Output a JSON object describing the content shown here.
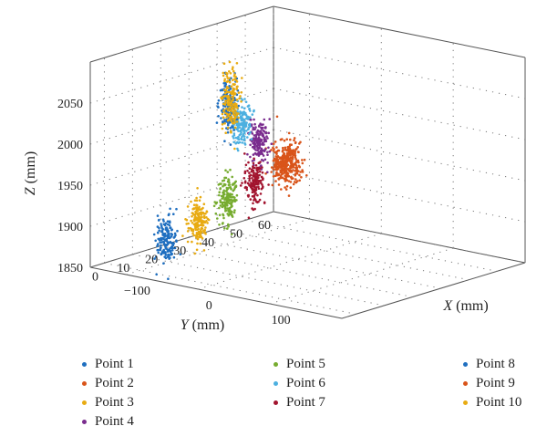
{
  "chart_data": {
    "type": "scatter",
    "projection": "3d",
    "axes": {
      "x": {
        "label_var": "X",
        "label_unit": " (mm)",
        "ticks": [
          -100,
          0,
          100
        ],
        "tick_labels": [
          "−100",
          "0",
          "100"
        ],
        "range": [
          -150,
          200
        ]
      },
      "y": {
        "label_var": "Y",
        "label_unit": " (mm)",
        "ticks": [
          0,
          10,
          20,
          30,
          40,
          50,
          60
        ],
        "tick_labels": [
          "0",
          "10",
          "20",
          "30",
          "40",
          "50",
          "60"
        ],
        "range": [
          -5,
          60
        ]
      },
      "z": {
        "label_var": "Z",
        "label_unit": " (mm)",
        "ticks": [
          1850,
          1900,
          1950,
          2000,
          2050
        ],
        "tick_labels": [
          "1850",
          "1900",
          "1950",
          "2000",
          "2050"
        ],
        "range": [
          1850,
          2100
        ]
      }
    },
    "grid": true,
    "legend_position": "bottom",
    "series": [
      {
        "name": "Point 1",
        "color": "#1f6fc0",
        "center": {
          "x": -60,
          "y": -1,
          "z": 1895
        },
        "spread": {
          "x": 8,
          "y": 2,
          "z": 25
        }
      },
      {
        "name": "Point 2",
        "color": "#d9541a",
        "center": {
          "x": -100,
          "y": 50,
          "z": 1928
        },
        "spread": {
          "x": 6,
          "y": 2,
          "z": 22
        }
      },
      {
        "name": "Point 3",
        "color": "#e8ab12",
        "center": {
          "x": -35,
          "y": 4,
          "z": 1915
        },
        "spread": {
          "x": 7,
          "y": 2,
          "z": 24
        }
      },
      {
        "name": "Point 4",
        "color": "#7a2d8e",
        "center": {
          "x": -95,
          "y": 41,
          "z": 1963
        },
        "spread": {
          "x": 6,
          "y": 2,
          "z": 24
        }
      },
      {
        "name": "Point 5",
        "color": "#77ac30",
        "center": {
          "x": -10,
          "y": 8,
          "z": 1944
        },
        "spread": {
          "x": 7,
          "y": 2,
          "z": 24
        }
      },
      {
        "name": "Point 6",
        "color": "#4db0e0",
        "center": {
          "x": -85,
          "y": 32,
          "z": 1996
        },
        "spread": {
          "x": 6,
          "y": 2,
          "z": 26
        }
      },
      {
        "name": "Point 7",
        "color": "#a2142f",
        "center": {
          "x": 20,
          "y": 10,
          "z": 1968
        },
        "spread": {
          "x": 7,
          "y": 2,
          "z": 24
        }
      },
      {
        "name": "Point 8",
        "color": "#1f6fc0",
        "center": {
          "x": -75,
          "y": 25,
          "z": 2030
        },
        "spread": {
          "x": 6,
          "y": 2,
          "z": 26
        }
      },
      {
        "name": "Point 9",
        "color": "#d9541a",
        "center": {
          "x": 55,
          "y": 14,
          "z": 1992
        },
        "spread": {
          "x": 7,
          "y": 2,
          "z": 30
        }
      },
      {
        "name": "Point 10",
        "color": "#e8ab12",
        "center": {
          "x": -60,
          "y": 22,
          "z": 2042
        },
        "spread": {
          "x": 7,
          "y": 2,
          "z": 36
        }
      }
    ]
  }
}
